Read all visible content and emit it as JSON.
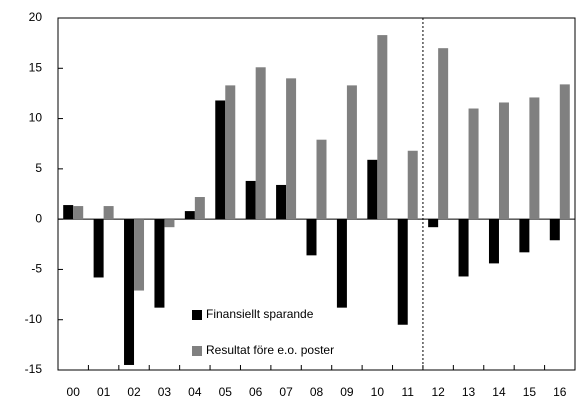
{
  "chart_data": {
    "type": "bar",
    "categories": [
      "00",
      "01",
      "02",
      "03",
      "04",
      "05",
      "06",
      "07",
      "08",
      "09",
      "10",
      "11",
      "12",
      "13",
      "14",
      "15",
      "16"
    ],
    "series": [
      {
        "name": "Finansiellt sparande",
        "color": "#000000",
        "values": [
          1.4,
          -5.8,
          -14.5,
          -8.8,
          0.8,
          11.8,
          3.8,
          3.4,
          -3.6,
          -8.8,
          5.9,
          -10.5,
          -0.8,
          -5.7,
          -4.4,
          -3.3,
          -2.1
        ]
      },
      {
        "name": "Resultat före e.o. poster",
        "color": "#808080",
        "values": [
          1.3,
          1.3,
          -7.1,
          -0.8,
          2.2,
          13.3,
          15.1,
          14.0,
          7.9,
          13.3,
          18.3,
          6.8,
          17.0,
          11.0,
          11.6,
          12.1,
          13.4
        ]
      }
    ],
    "ylim": [
      -15,
      20
    ],
    "yticks": [
      -15,
      -10,
      -5,
      0,
      5,
      10,
      15,
      20
    ],
    "divider_after": "11",
    "legend": "lower center"
  }
}
